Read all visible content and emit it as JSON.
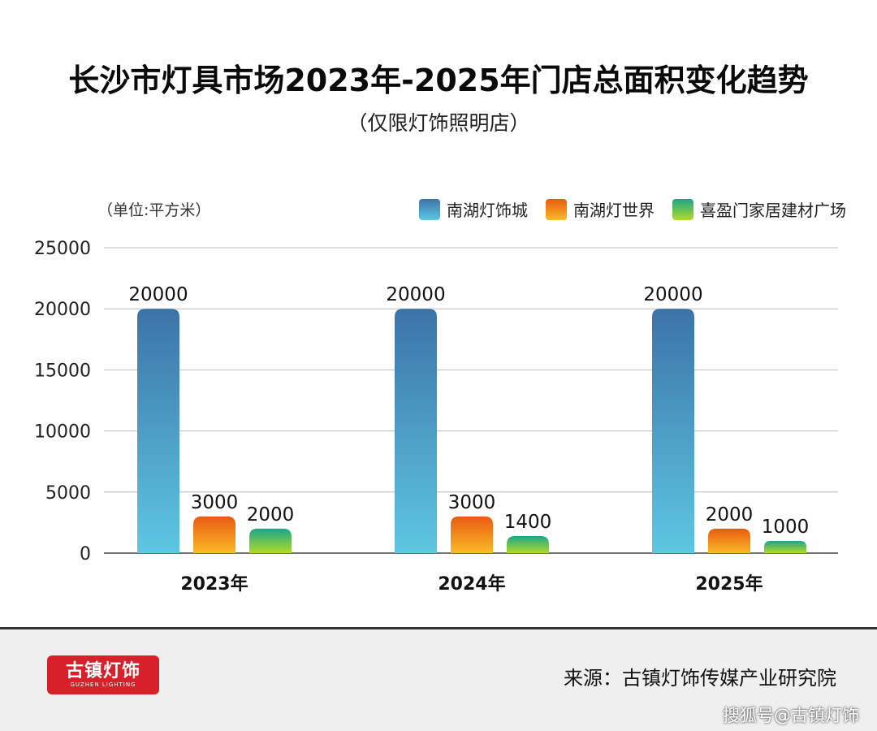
{
  "title": "长沙市灯具市场2023年-2025年门店总面积变化趋势",
  "subtitle": "（仅限灯饰照明店）",
  "unit_label": "（单位:平方米）",
  "chart_data": {
    "type": "bar",
    "categories": [
      "2023年",
      "2024年",
      "2025年"
    ],
    "series": [
      {
        "name": "南湖灯饰城",
        "values": [
          20000,
          20000,
          20000
        ]
      },
      {
        "name": "南湖灯世界",
        "values": [
          3000,
          3000,
          2000
        ]
      },
      {
        "name": "喜盈门家居建材广场",
        "values": [
          2000,
          1400,
          1000
        ]
      }
    ],
    "ylim": [
      0,
      25000
    ],
    "yticks": [
      0,
      5000,
      10000,
      15000,
      20000,
      25000
    ],
    "grid": true,
    "legend_position": "top-right",
    "data_labels": true
  },
  "colors": {
    "series_0": [
      "#3c73a8",
      "#5ec7e2"
    ],
    "series_1": [
      "#ea5a10",
      "#f9bb28"
    ],
    "series_2": [
      "#1aa68a",
      "#b2da28"
    ],
    "grid": "#bcbcbc"
  },
  "footer": {
    "logo_text": "古镇灯饰",
    "logo_subtext": "GUZHEN LIGHTING",
    "source": "来源：古镇灯饰传媒产业研究院",
    "watermark": "搜狐号@古镇灯饰"
  }
}
